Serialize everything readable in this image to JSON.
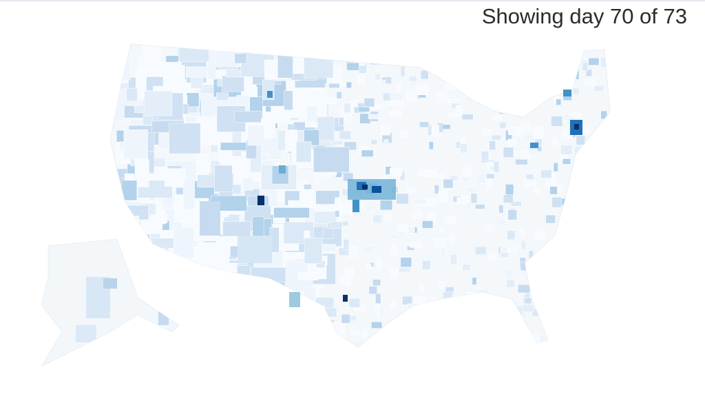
{
  "status": "Showing day 70 of 73"
}
